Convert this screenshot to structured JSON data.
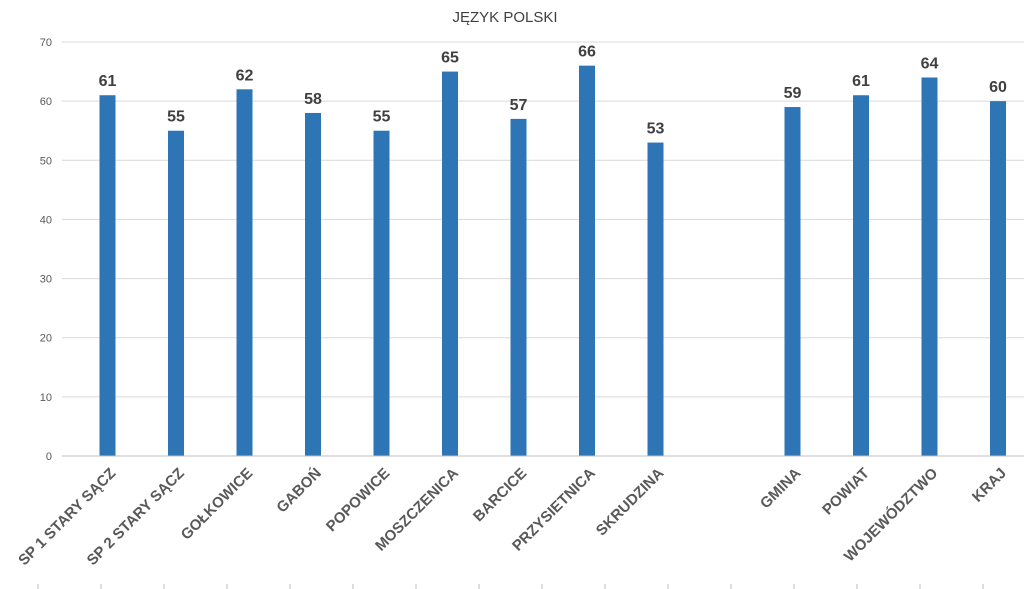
{
  "chart_data": {
    "type": "bar",
    "title": "JĘZYK POLSKI",
    "categories": [
      "SP 1 STARY SĄCZ",
      "SP 2 STARY SĄCZ",
      "GOŁKOWICE",
      "GABOŃ",
      "POPOWICE",
      "MOSZCZENICA",
      "BARCICE",
      "PRZYSIETNICA",
      "SKRUDZINA",
      "",
      "GMINA",
      "POWIAT",
      "WOJEWÓDZTWO",
      "KRAJ"
    ],
    "values": [
      61,
      55,
      62,
      58,
      55,
      65,
      57,
      66,
      53,
      null,
      59,
      61,
      64,
      60
    ],
    "data_labels": [
      "61",
      "55",
      "62",
      "58",
      "55",
      "65",
      "57",
      "66",
      "53",
      "",
      "59",
      "61",
      "64",
      "60"
    ],
    "y_ticks": [
      "0",
      "10",
      "20",
      "30",
      "40",
      "50",
      "60",
      "70"
    ],
    "ylim": [
      0,
      70
    ],
    "grid": true,
    "bar_color": "#2e75b6"
  }
}
